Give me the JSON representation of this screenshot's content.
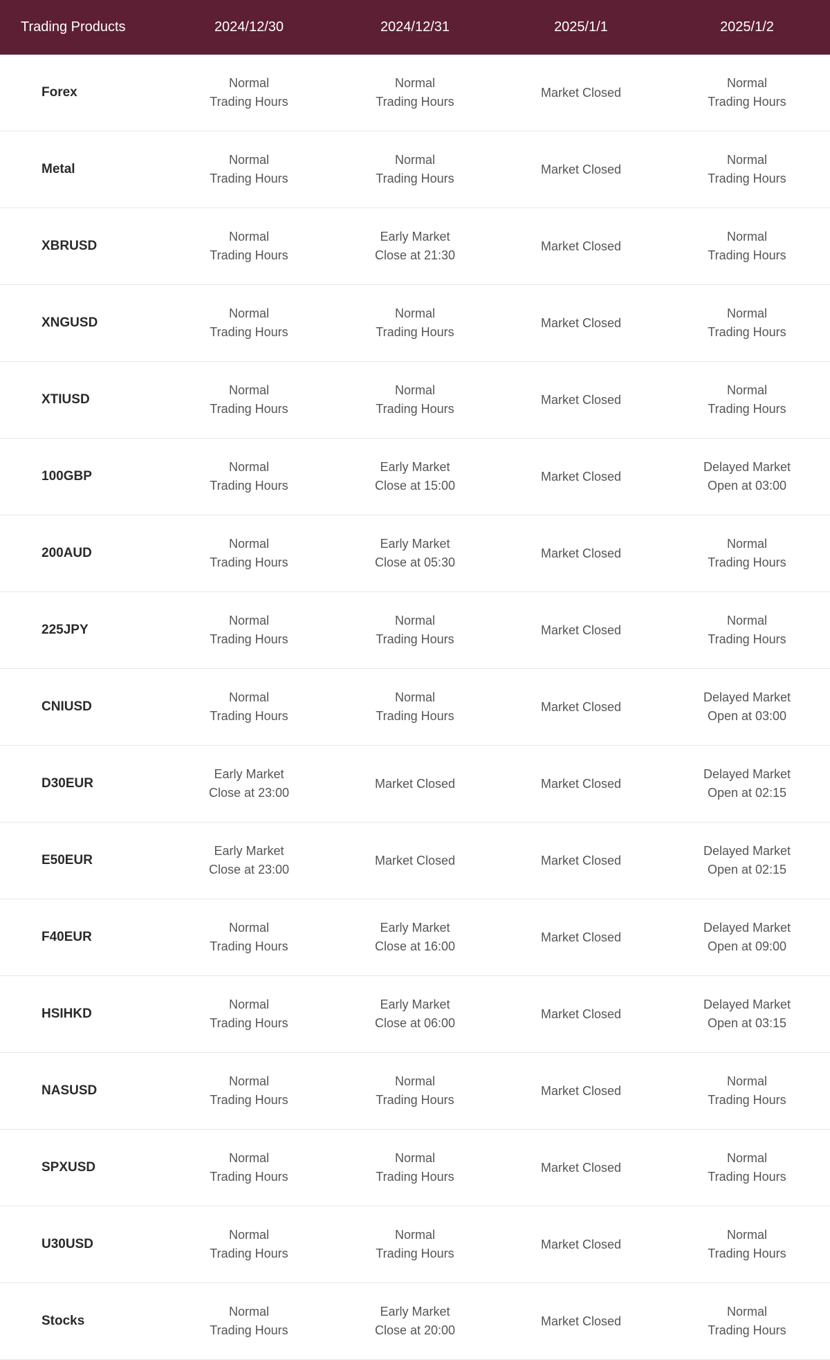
{
  "colors": {
    "header_bg": "#5d1f33",
    "header_text": "#ffffff",
    "product_text": "#2a2a2a",
    "value_text": "#555555",
    "border": "#e8e8e8",
    "background": "#ffffff"
  },
  "typography": {
    "header_fontsize": 20,
    "product_fontsize": 19,
    "value_fontsize": 18,
    "product_fontweight": 600
  },
  "table": {
    "columns": [
      "Trading Products",
      "2024/12/30",
      "2024/12/31",
      "2025/1/1",
      "2025/1/2"
    ],
    "rows": [
      {
        "product": "Forex",
        "cells": [
          {
            "line1": "Normal",
            "line2": "Trading Hours"
          },
          {
            "line1": "Normal",
            "line2": "Trading Hours"
          },
          {
            "line1": "Market Closed",
            "line2": ""
          },
          {
            "line1": "Normal",
            "line2": "Trading Hours"
          }
        ]
      },
      {
        "product": "Metal",
        "cells": [
          {
            "line1": "Normal",
            "line2": "Trading Hours"
          },
          {
            "line1": "Normal",
            "line2": "Trading Hours"
          },
          {
            "line1": "Market Closed",
            "line2": ""
          },
          {
            "line1": "Normal",
            "line2": "Trading Hours"
          }
        ]
      },
      {
        "product": "XBRUSD",
        "cells": [
          {
            "line1": "Normal",
            "line2": "Trading Hours"
          },
          {
            "line1": "Early Market",
            "line2": "Close at 21:30"
          },
          {
            "line1": "Market Closed",
            "line2": ""
          },
          {
            "line1": "Normal",
            "line2": "Trading Hours"
          }
        ]
      },
      {
        "product": "XNGUSD",
        "cells": [
          {
            "line1": "Normal",
            "line2": "Trading Hours"
          },
          {
            "line1": "Normal",
            "line2": "Trading Hours"
          },
          {
            "line1": "Market Closed",
            "line2": ""
          },
          {
            "line1": "Normal",
            "line2": "Trading Hours"
          }
        ]
      },
      {
        "product": "XTIUSD",
        "cells": [
          {
            "line1": "Normal",
            "line2": "Trading Hours"
          },
          {
            "line1": "Normal",
            "line2": "Trading Hours"
          },
          {
            "line1": "Market Closed",
            "line2": ""
          },
          {
            "line1": "Normal",
            "line2": "Trading Hours"
          }
        ]
      },
      {
        "product": "100GBP",
        "cells": [
          {
            "line1": "Normal",
            "line2": "Trading Hours"
          },
          {
            "line1": "Early Market",
            "line2": "Close at 15:00"
          },
          {
            "line1": "Market Closed",
            "line2": ""
          },
          {
            "line1": "Delayed Market",
            "line2": "Open at 03:00"
          }
        ]
      },
      {
        "product": "200AUD",
        "cells": [
          {
            "line1": "Normal",
            "line2": "Trading Hours"
          },
          {
            "line1": "Early Market",
            "line2": "Close at 05:30"
          },
          {
            "line1": "Market Closed",
            "line2": ""
          },
          {
            "line1": "Normal",
            "line2": "Trading Hours"
          }
        ]
      },
      {
        "product": "225JPY",
        "cells": [
          {
            "line1": "Normal",
            "line2": "Trading Hours"
          },
          {
            "line1": "Normal",
            "line2": "Trading Hours"
          },
          {
            "line1": "Market Closed",
            "line2": ""
          },
          {
            "line1": "Normal",
            "line2": "Trading Hours"
          }
        ]
      },
      {
        "product": "CNIUSD",
        "cells": [
          {
            "line1": "Normal",
            "line2": "Trading Hours"
          },
          {
            "line1": "Normal",
            "line2": "Trading Hours"
          },
          {
            "line1": "Market Closed",
            "line2": ""
          },
          {
            "line1": "Delayed Market",
            "line2": "Open at 03:00"
          }
        ]
      },
      {
        "product": "D30EUR",
        "cells": [
          {
            "line1": "Early Market",
            "line2": "Close at 23:00"
          },
          {
            "line1": "Market Closed",
            "line2": ""
          },
          {
            "line1": "Market Closed",
            "line2": ""
          },
          {
            "line1": "Delayed Market",
            "line2": "Open at 02:15"
          }
        ]
      },
      {
        "product": "E50EUR",
        "cells": [
          {
            "line1": "Early Market",
            "line2": "Close at 23:00"
          },
          {
            "line1": "Market Closed",
            "line2": ""
          },
          {
            "line1": "Market Closed",
            "line2": ""
          },
          {
            "line1": "Delayed Market",
            "line2": "Open at 02:15"
          }
        ]
      },
      {
        "product": "F40EUR",
        "cells": [
          {
            "line1": "Normal",
            "line2": "Trading Hours"
          },
          {
            "line1": "Early Market",
            "line2": "Close at 16:00"
          },
          {
            "line1": "Market Closed",
            "line2": ""
          },
          {
            "line1": "Delayed Market",
            "line2": "Open at 09:00"
          }
        ]
      },
      {
        "product": "HSIHKD",
        "cells": [
          {
            "line1": "Normal",
            "line2": "Trading Hours"
          },
          {
            "line1": "Early Market",
            "line2": "Close at 06:00"
          },
          {
            "line1": "Market Closed",
            "line2": ""
          },
          {
            "line1": "Delayed Market",
            "line2": "Open at 03:15"
          }
        ]
      },
      {
        "product": "NASUSD",
        "cells": [
          {
            "line1": "Normal",
            "line2": "Trading Hours"
          },
          {
            "line1": "Normal",
            "line2": "Trading Hours"
          },
          {
            "line1": "Market Closed",
            "line2": ""
          },
          {
            "line1": "Normal",
            "line2": "Trading Hours"
          }
        ]
      },
      {
        "product": "SPXUSD",
        "cells": [
          {
            "line1": "Normal",
            "line2": "Trading Hours"
          },
          {
            "line1": "Normal",
            "line2": "Trading Hours"
          },
          {
            "line1": "Market Closed",
            "line2": ""
          },
          {
            "line1": "Normal",
            "line2": "Trading Hours"
          }
        ]
      },
      {
        "product": "U30USD",
        "cells": [
          {
            "line1": "Normal",
            "line2": "Trading Hours"
          },
          {
            "line1": "Normal",
            "line2": "Trading Hours"
          },
          {
            "line1": "Market Closed",
            "line2": ""
          },
          {
            "line1": "Normal",
            "line2": "Trading Hours"
          }
        ]
      },
      {
        "product": "Stocks",
        "cells": [
          {
            "line1": "Normal",
            "line2": "Trading Hours"
          },
          {
            "line1": "Early Market",
            "line2": "Close at 20:00"
          },
          {
            "line1": "Market Closed",
            "line2": ""
          },
          {
            "line1": "Normal",
            "line2": "Trading Hours"
          }
        ]
      }
    ]
  }
}
